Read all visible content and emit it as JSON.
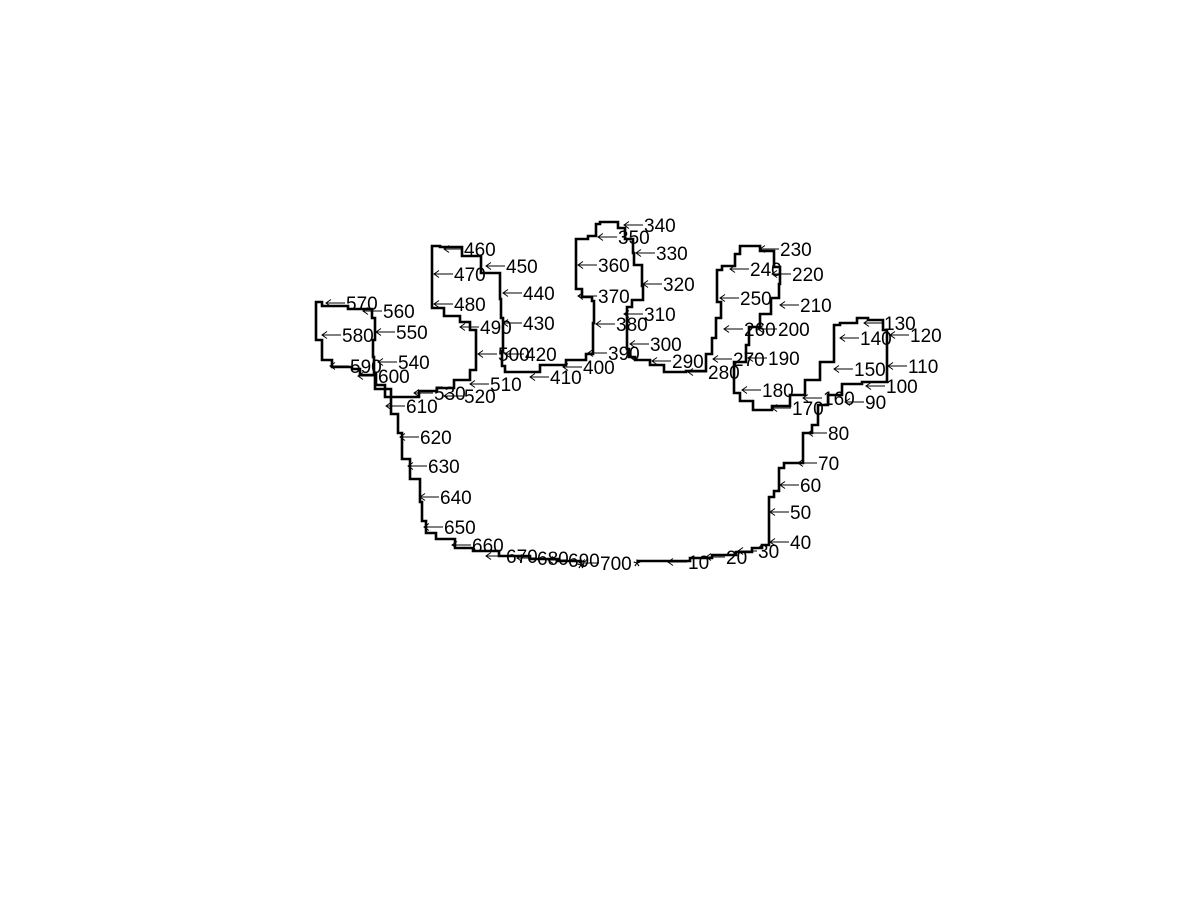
{
  "figure": {
    "contour_color": "#000000",
    "start_marker": {
      "symbol": "*",
      "color": "#e00000"
    },
    "end_marker": {
      "symbol": "*",
      "color": "#00c000"
    },
    "labels": [
      "10",
      "20",
      "30",
      "40",
      "50",
      "60",
      "70",
      "80",
      "90",
      "100",
      "110",
      "120",
      "130",
      "140",
      "150",
      "160",
      "170",
      "180",
      "190",
      "200",
      "210",
      "220",
      "230",
      "240",
      "250",
      "260",
      "270",
      "280",
      "290",
      "300",
      "310",
      "320",
      "330",
      "340",
      "350",
      "360",
      "370",
      "380",
      "390",
      "400",
      "410",
      "420",
      "430",
      "440",
      "450",
      "460",
      "470",
      "480",
      "490",
      "500",
      "510",
      "520",
      "530",
      "540",
      "550",
      "560",
      "570",
      "580",
      "590",
      "600",
      "610",
      "620",
      "630",
      "640",
      "650",
      "660",
      "670",
      "680",
      "690",
      "700"
    ],
    "arrow_glyph": "←"
  }
}
